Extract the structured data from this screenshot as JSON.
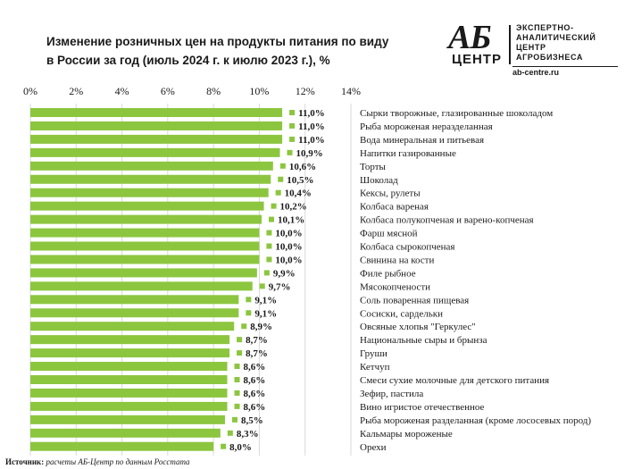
{
  "header": {
    "title_line1": "Изменение розничных цен на продукты питания по виду",
    "title_line2": "в России за год (июль 2024 г. к июлю 2023 г.), %"
  },
  "logo": {
    "mark_ab": "АБ",
    "mark_centr": "ЦЕНТР",
    "text_lines": [
      "ЭКСПЕРТНО-",
      "АНАЛИТИЧЕСКИЙ",
      "ЦЕНТР",
      "АГРОБИЗНЕСА"
    ],
    "url": "ab-centre.ru"
  },
  "source": {
    "label": "Источник:",
    "text": "расчеты АБ-Центр по данным Росстата"
  },
  "colors": {
    "bar": "#8cc63f",
    "grid": "#d9d9d9"
  },
  "chart_data": {
    "type": "bar",
    "orientation": "horizontal",
    "xlim": [
      0,
      14
    ],
    "ticks": [
      "0%",
      "2%",
      "4%",
      "6%",
      "8%",
      "10%",
      "12%",
      "14%"
    ],
    "tick_values": [
      0,
      2,
      4,
      6,
      8,
      10,
      12,
      14
    ],
    "grid": true,
    "categories": [
      "Сырки творожные, глазированные шоколадом",
      "Рыба мороженая неразделанная",
      "Вода минеральная и питьевая",
      "Напитки газированные",
      "Торты",
      "Шоколад",
      "Кексы, рулеты",
      "Колбаса вареная",
      "Колбаса полукопченая и варено-копченая",
      "Фарш мясной",
      "Колбаса сырокопченая",
      "Свинина на кости",
      "Филе рыбное",
      "Мясокопчености",
      "Соль поваренная пищевая",
      "Сосиски, сардельки",
      "Овсяные хлопья \"Геркулес\"",
      "Национальные сыры и брынза",
      "Груши",
      "Кетчуп",
      "Смеси сухие молочные для детского питания",
      "Зефир, пастила",
      "Вино игристое отечественное",
      "Рыба мороженая разделанная (кроме лососевых пород)",
      "Кальмары мороженые",
      "Орехи"
    ],
    "values": [
      11.0,
      11.0,
      11.0,
      10.9,
      10.6,
      10.5,
      10.4,
      10.2,
      10.1,
      10.0,
      10.0,
      10.0,
      9.9,
      9.7,
      9.1,
      9.1,
      8.9,
      8.7,
      8.7,
      8.6,
      8.6,
      8.6,
      8.6,
      8.5,
      8.3,
      8.0
    ],
    "labels": [
      "11,0%",
      "11,0%",
      "11,0%",
      "10,9%",
      "10,6%",
      "10,5%",
      "10,4%",
      "10,2%",
      "10,1%",
      "10,0%",
      "10,0%",
      "10,0%",
      "9,9%",
      "9,7%",
      "9,1%",
      "9,1%",
      "8,9%",
      "8,7%",
      "8,7%",
      "8,6%",
      "8,6%",
      "8,6%",
      "8,6%",
      "8,5%",
      "8,3%",
      "8,0%"
    ]
  }
}
